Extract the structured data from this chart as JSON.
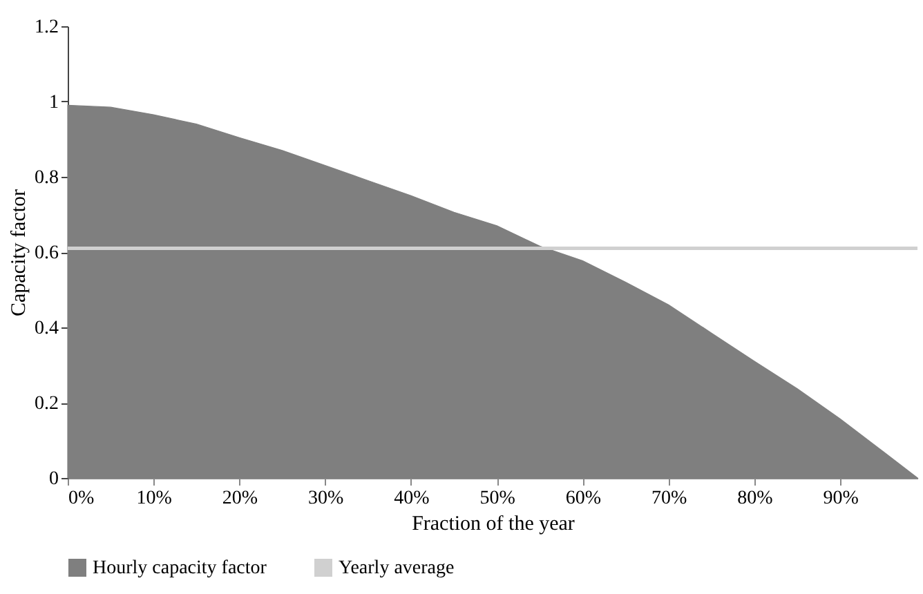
{
  "chart_data": {
    "type": "area",
    "xlabel": "Fraction of the year",
    "ylabel": "Capacity factor",
    "x": [
      0,
      5,
      10,
      15,
      20,
      25,
      30,
      35,
      40,
      45,
      50,
      55,
      60,
      65,
      70,
      75,
      80,
      85,
      90,
      95,
      99
    ],
    "series": [
      {
        "name": "Hourly capacity factor",
        "color": "#7f7f7f",
        "values": [
          0.99,
          0.985,
          0.965,
          0.94,
          0.904,
          0.87,
          0.83,
          0.79,
          0.75,
          0.706,
          0.67,
          0.616,
          0.577,
          0.52,
          0.46,
          0.385,
          0.31,
          0.237,
          0.157,
          0.07,
          0
        ]
      },
      {
        "name": "Yearly average",
        "type": "line",
        "color": "#d0d0d0",
        "x": [
          0,
          99
        ],
        "values": [
          0.61,
          0.61
        ]
      }
    ],
    "xlim": [
      0,
      99
    ],
    "xticks": [
      {
        "value": 0,
        "label": "0%"
      },
      {
        "value": 10,
        "label": "10%"
      },
      {
        "value": 20,
        "label": "20%"
      },
      {
        "value": 30,
        "label": "30%"
      },
      {
        "value": 40,
        "label": "40%"
      },
      {
        "value": 50,
        "label": "50%"
      },
      {
        "value": 60,
        "label": "60%"
      },
      {
        "value": 70,
        "label": "70%"
      },
      {
        "value": 80,
        "label": "80%"
      },
      {
        "value": 90,
        "label": "90%"
      }
    ],
    "ylim": [
      0,
      1.2
    ],
    "yticks": [
      0,
      0.2,
      0.4,
      0.6,
      0.8,
      1,
      1.2
    ],
    "grid": false,
    "legend": "bottom"
  }
}
